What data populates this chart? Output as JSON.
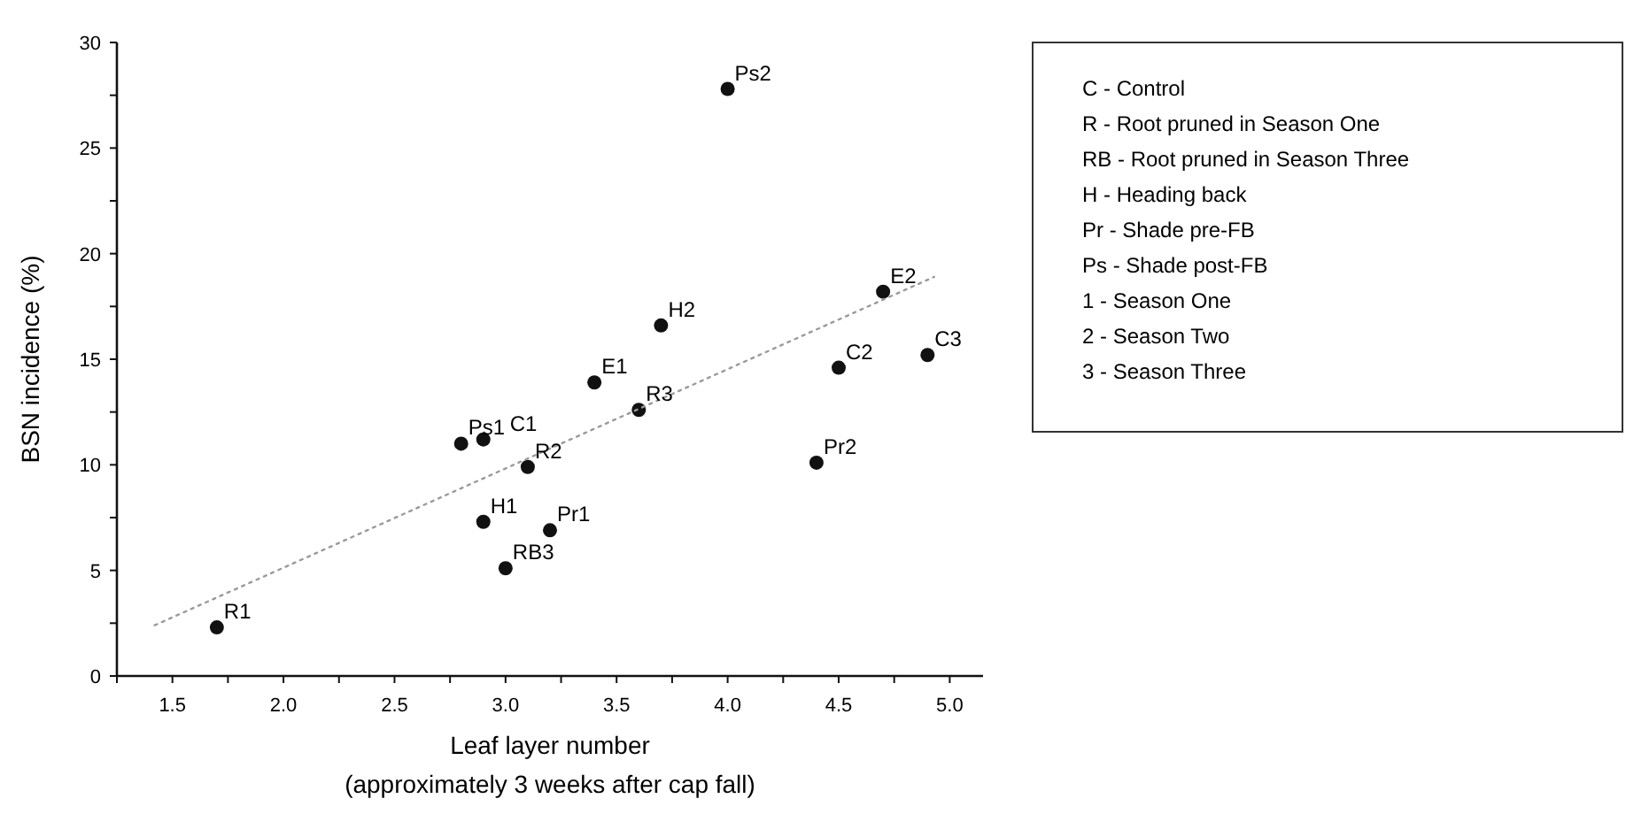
{
  "chart_data": {
    "type": "scatter",
    "xlabel": "Leaf layer number\n(approximately 3 weeks after cap fall)",
    "ylabel": "BSN incidence (%)",
    "xlim": [
      1.25,
      5.15
    ],
    "ylim": [
      0,
      30
    ],
    "xticks": [
      {
        "value": 1.25,
        "label": null
      },
      1.5,
      {
        "value": 1.75,
        "label": null
      },
      {
        "value": 2,
        "label": "2.0"
      },
      {
        "value": 2.25,
        "label": null
      },
      2.5,
      {
        "value": 2.75,
        "label": null
      },
      {
        "value": 3,
        "label": "3.0"
      },
      {
        "value": 3.25,
        "label": null
      },
      3.5,
      {
        "value": 3.75,
        "label": null
      },
      {
        "value": 4,
        "label": "4.0"
      },
      {
        "value": 4.25,
        "label": null
      },
      4.5,
      {
        "value": 4.75,
        "label": null
      },
      {
        "value": 5,
        "label": "5.0"
      }
    ],
    "yticks": [
      0,
      {
        "value": 2.5,
        "label": null
      },
      5,
      {
        "value": 7.5,
        "label": null
      },
      10,
      {
        "value": 12.5,
        "label": null
      },
      15,
      {
        "value": 17.5,
        "label": null
      },
      20,
      {
        "value": 22.5,
        "label": null
      },
      25,
      {
        "value": 27.5,
        "label": null
      },
      30
    ],
    "grid": false,
    "marker": "circle",
    "series": [
      {
        "color": "#111111",
        "x": [
          1.7,
          2.8,
          2.9,
          3.1,
          2.9,
          3.2,
          3.0,
          3.4,
          3.6,
          3.7,
          4.0,
          4.7,
          4.5,
          4.9,
          4.4
        ],
        "values": [
          2.3,
          11.0,
          11.2,
          9.9,
          7.3,
          6.9,
          5.1,
          13.9,
          12.6,
          16.6,
          27.8,
          18.2,
          14.6,
          15.2,
          10.1
        ]
      },
      {
        "type": "line",
        "color": "#9a9a9a",
        "line_style": "dotted",
        "marker": "none",
        "x": [
          1.42,
          4.93
        ],
        "values": [
          2.4,
          18.9
        ]
      }
    ],
    "annotations": [
      {
        "text": "R1",
        "x": 1.7,
        "y": 2.3
      },
      {
        "text": "Ps1",
        "x": 2.8,
        "y": 11.0
      },
      {
        "text": "C1",
        "x": 2.9,
        "y": 11.2
      },
      {
        "text": "R2",
        "x": 3.1,
        "y": 9.9
      },
      {
        "text": "H1",
        "x": 2.9,
        "y": 7.3
      },
      {
        "text": "Pr1",
        "x": 3.2,
        "y": 6.9
      },
      {
        "text": "RB3",
        "x": 3.0,
        "y": 5.1
      },
      {
        "text": "E1",
        "x": 3.4,
        "y": 13.9
      },
      {
        "text": "R3",
        "x": 3.6,
        "y": 12.6
      },
      {
        "text": "H2",
        "x": 3.7,
        "y": 16.6
      },
      {
        "text": "Ps2",
        "x": 4.0,
        "y": 27.8
      },
      {
        "text": "E2",
        "x": 4.7,
        "y": 18.2
      },
      {
        "text": "C2",
        "x": 4.5,
        "y": 14.6
      },
      {
        "text": "C3",
        "x": 4.9,
        "y": 15.2
      },
      {
        "text": "Pr2",
        "x": 4.4,
        "y": 10.1
      },
      "C - Control",
      "R - Root pruned in Season One",
      "RB - Root pruned in Season Three",
      "H - Heading back",
      "Pr - Shade pre-FB",
      "Ps - Shade post-FB",
      "1 - Season One",
      "2 - Season Two",
      "3 - Season Three"
    ]
  }
}
